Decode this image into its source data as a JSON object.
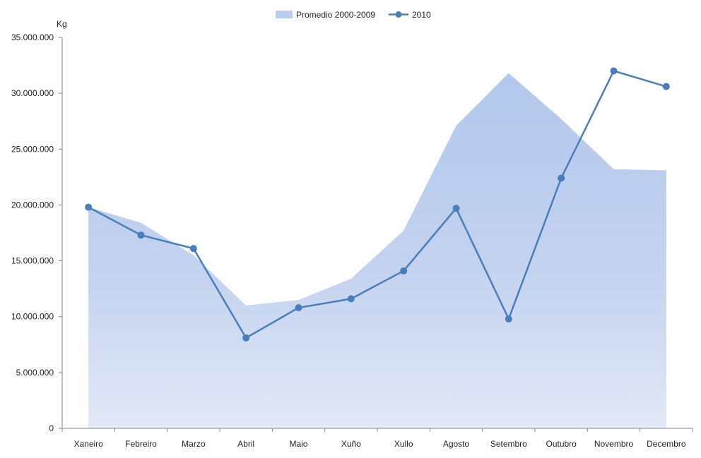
{
  "chart_data": {
    "type": "area",
    "y_unit_label": "Kg",
    "categories": [
      "Xaneiro",
      "Febreiro",
      "Marzo",
      "Abril",
      "Maio",
      "Xuño",
      "Xullo",
      "Agosto",
      "Setembro",
      "Outubro",
      "Novembro",
      "Decembro"
    ],
    "ylim": [
      0,
      35000000
    ],
    "y_ticks": [
      0,
      5000000,
      10000000,
      15000000,
      20000000,
      25000000,
      30000000,
      35000000
    ],
    "y_tick_labels": [
      "0",
      "5.000.000",
      "10.000.000",
      "15.000.000",
      "20.000.000",
      "25.000.000",
      "30.000.000",
      "35.000.000"
    ],
    "grid": false,
    "legend_position": "top-center",
    "series": [
      {
        "name": "Promedio 2000-2009",
        "kind": "area",
        "color": "#b9cdee",
        "values": [
          19800000,
          18400000,
          15500000,
          11000000,
          11500000,
          13400000,
          17700000,
          27100000,
          31800000,
          27700000,
          23200000,
          23100000
        ]
      },
      {
        "name": "2010",
        "kind": "line",
        "color": "#4a7ebb",
        "values": [
          19800000,
          17300000,
          16100000,
          8100000,
          10800000,
          11600000,
          14100000,
          19700000,
          9800000,
          22400000,
          32000000,
          30600000
        ]
      }
    ]
  }
}
